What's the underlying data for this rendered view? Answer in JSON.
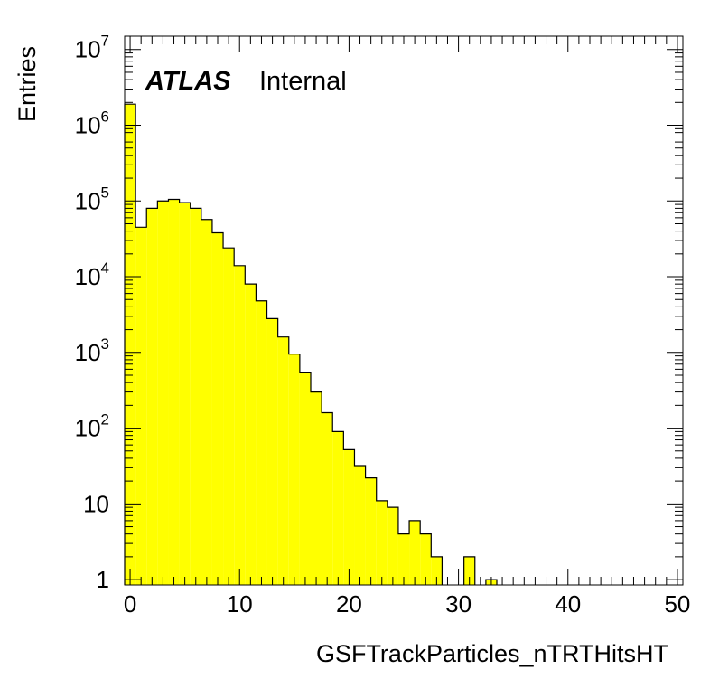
{
  "chart_data": {
    "type": "bar",
    "style": "histogram",
    "xlabel": "GSFTrackParticles_nTRTHitsHT",
    "ylabel": "Entries",
    "annotation": {
      "experiment": "ATLAS",
      "status": "Internal"
    },
    "xlim": [
      -0.5,
      50.5
    ],
    "ylim": [
      0.85,
      15000000
    ],
    "log_y": true,
    "grid": false,
    "fill_color": "#ffff00",
    "line_color": "#000000",
    "bin_width": 1,
    "x": [
      0,
      1,
      2,
      3,
      4,
      5,
      6,
      7,
      8,
      9,
      10,
      11,
      12,
      13,
      14,
      15,
      16,
      17,
      18,
      19,
      20,
      21,
      22,
      23,
      24,
      25,
      26,
      27,
      28,
      29,
      30,
      31,
      32,
      33,
      34,
      35,
      36,
      37,
      38,
      39,
      40,
      41,
      42,
      43,
      44,
      45,
      46,
      47,
      48,
      49,
      50
    ],
    "values": [
      1900000,
      45000,
      80000,
      100000,
      105000,
      95000,
      80000,
      57000,
      38000,
      24000,
      14000,
      8000,
      4800,
      2800,
      1600,
      950,
      550,
      300,
      160,
      90,
      52,
      32,
      22,
      11,
      9,
      4,
      6,
      4,
      2,
      0,
      0,
      2,
      0,
      1,
      0,
      0,
      0,
      0,
      0,
      0,
      0,
      0,
      0,
      0,
      0,
      0,
      0,
      0,
      0,
      0,
      0
    ],
    "x_ticks": [
      "0",
      "10",
      "20",
      "30",
      "40",
      "50"
    ],
    "y_ticks": [
      {
        "base": "1",
        "exp": ""
      },
      {
        "base": "10",
        "exp": ""
      },
      {
        "base": "10",
        "exp": "2"
      },
      {
        "base": "10",
        "exp": "3"
      },
      {
        "base": "10",
        "exp": "4"
      },
      {
        "base": "10",
        "exp": "5"
      },
      {
        "base": "10",
        "exp": "6"
      },
      {
        "base": "10",
        "exp": "7"
      }
    ]
  }
}
